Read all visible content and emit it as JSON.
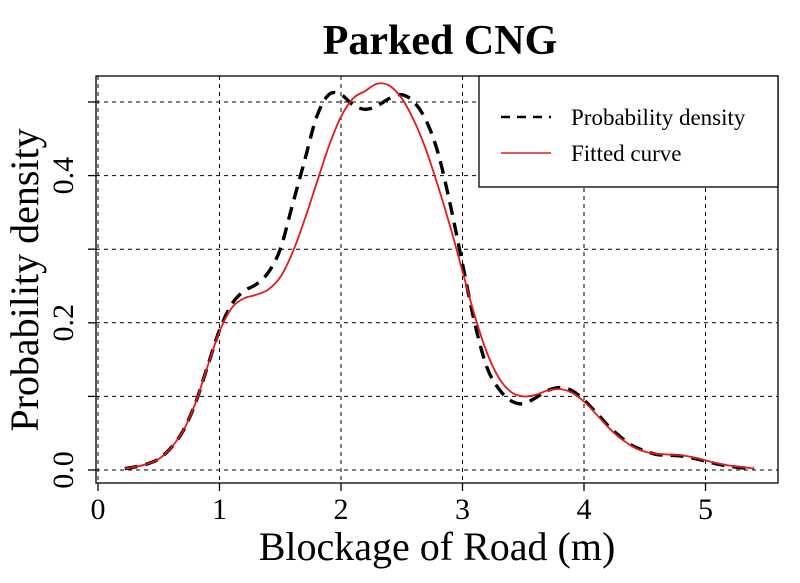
{
  "chart_data": {
    "type": "line",
    "title": "Parked CNG",
    "xlabel": "Blockage of Road (m)",
    "ylabel": "Probability density",
    "xlim": [
      0,
      5.6
    ],
    "ylim": [
      0,
      0.53
    ],
    "x_ticks": [
      0,
      1,
      2,
      3,
      4,
      5
    ],
    "y_ticks": [
      0.0,
      0.2,
      0.4
    ],
    "y_tick_labels": [
      "0.0",
      "0.2",
      "0.4"
    ],
    "y_grid": [
      0.0,
      0.1,
      0.2,
      0.3,
      0.4,
      0.5
    ],
    "grid": true,
    "legend_position": "top-right",
    "series": [
      {
        "name": "Probability density",
        "style": "dashed",
        "color": "#000000",
        "x": [
          0.22,
          0.3,
          0.4,
          0.5,
          0.6,
          0.7,
          0.8,
          0.9,
          1.0,
          1.1,
          1.2,
          1.3,
          1.4,
          1.5,
          1.6,
          1.7,
          1.8,
          1.9,
          2.0,
          2.1,
          2.2,
          2.3,
          2.4,
          2.5,
          2.6,
          2.7,
          2.8,
          2.9,
          3.0,
          3.1,
          3.2,
          3.3,
          3.4,
          3.5,
          3.6,
          3.7,
          3.8,
          3.9,
          4.0,
          4.1,
          4.2,
          4.3,
          4.4,
          4.5,
          4.6,
          4.7,
          4.8,
          4.9,
          5.0,
          5.1,
          5.2,
          5.3,
          5.4
        ],
        "y": [
          0.002,
          0.004,
          0.008,
          0.015,
          0.03,
          0.053,
          0.09,
          0.14,
          0.19,
          0.225,
          0.243,
          0.252,
          0.268,
          0.3,
          0.36,
          0.42,
          0.48,
          0.51,
          0.51,
          0.496,
          0.49,
          0.495,
          0.505,
          0.51,
          0.5,
          0.475,
          0.43,
          0.36,
          0.28,
          0.2,
          0.14,
          0.11,
          0.094,
          0.09,
          0.098,
          0.108,
          0.112,
          0.108,
          0.095,
          0.078,
          0.06,
          0.045,
          0.033,
          0.026,
          0.021,
          0.02,
          0.019,
          0.016,
          0.012,
          0.008,
          0.005,
          0.003,
          0.002
        ]
      },
      {
        "name": "Fitted curve",
        "style": "solid",
        "color": "#e31a1c",
        "x": [
          0.22,
          0.3,
          0.4,
          0.5,
          0.6,
          0.7,
          0.8,
          0.9,
          1.0,
          1.1,
          1.2,
          1.3,
          1.4,
          1.5,
          1.6,
          1.7,
          1.8,
          1.9,
          2.0,
          2.1,
          2.2,
          2.3,
          2.4,
          2.5,
          2.6,
          2.7,
          2.8,
          2.9,
          3.0,
          3.1,
          3.2,
          3.3,
          3.4,
          3.5,
          3.6,
          3.7,
          3.8,
          3.9,
          4.0,
          4.1,
          4.2,
          4.3,
          4.4,
          4.5,
          4.6,
          4.7,
          4.8,
          4.9,
          5.0,
          5.1,
          5.2,
          5.3,
          5.4
        ],
        "y": [
          0.002,
          0.004,
          0.008,
          0.015,
          0.03,
          0.053,
          0.09,
          0.14,
          0.188,
          0.22,
          0.233,
          0.238,
          0.245,
          0.262,
          0.295,
          0.34,
          0.39,
          0.44,
          0.48,
          0.505,
          0.515,
          0.525,
          0.522,
          0.505,
          0.475,
          0.435,
          0.385,
          0.33,
          0.27,
          0.21,
          0.16,
          0.125,
          0.106,
          0.1,
          0.102,
          0.108,
          0.11,
          0.105,
          0.093,
          0.076,
          0.058,
          0.043,
          0.032,
          0.025,
          0.022,
          0.021,
          0.02,
          0.017,
          0.013,
          0.009,
          0.006,
          0.004,
          0.002
        ]
      }
    ]
  }
}
